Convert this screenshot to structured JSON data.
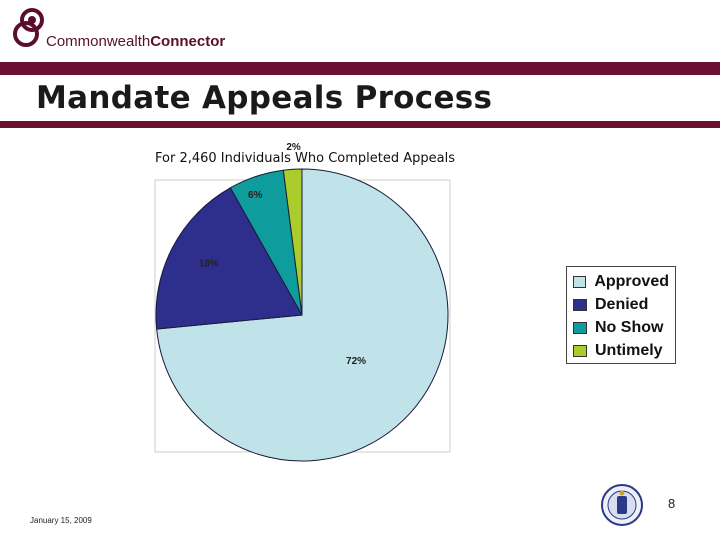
{
  "header": {
    "logo_text_regular": "Commonwealth",
    "logo_text_bold": "Connector",
    "title": "Mandate Appeals Process"
  },
  "chart_data": {
    "type": "pie",
    "title": "For 2,460 Individuals Who Completed Appeals",
    "categories": [
      "Approved",
      "Denied",
      "No Show",
      "Untimely"
    ],
    "values": [
      72,
      18,
      6,
      2
    ],
    "labels": [
      "72%",
      "18%",
      "6%",
      "2%"
    ],
    "colors": [
      "#bfe3e8",
      "#2e2e8c",
      "#0f9c9c",
      "#aacd2c"
    ],
    "legend_placement": "right"
  },
  "footer": {
    "page_number": "8",
    "date": "January 15, 2009"
  },
  "colors": {
    "banner": "#6b0f33",
    "logo": "#5a0f2e"
  }
}
